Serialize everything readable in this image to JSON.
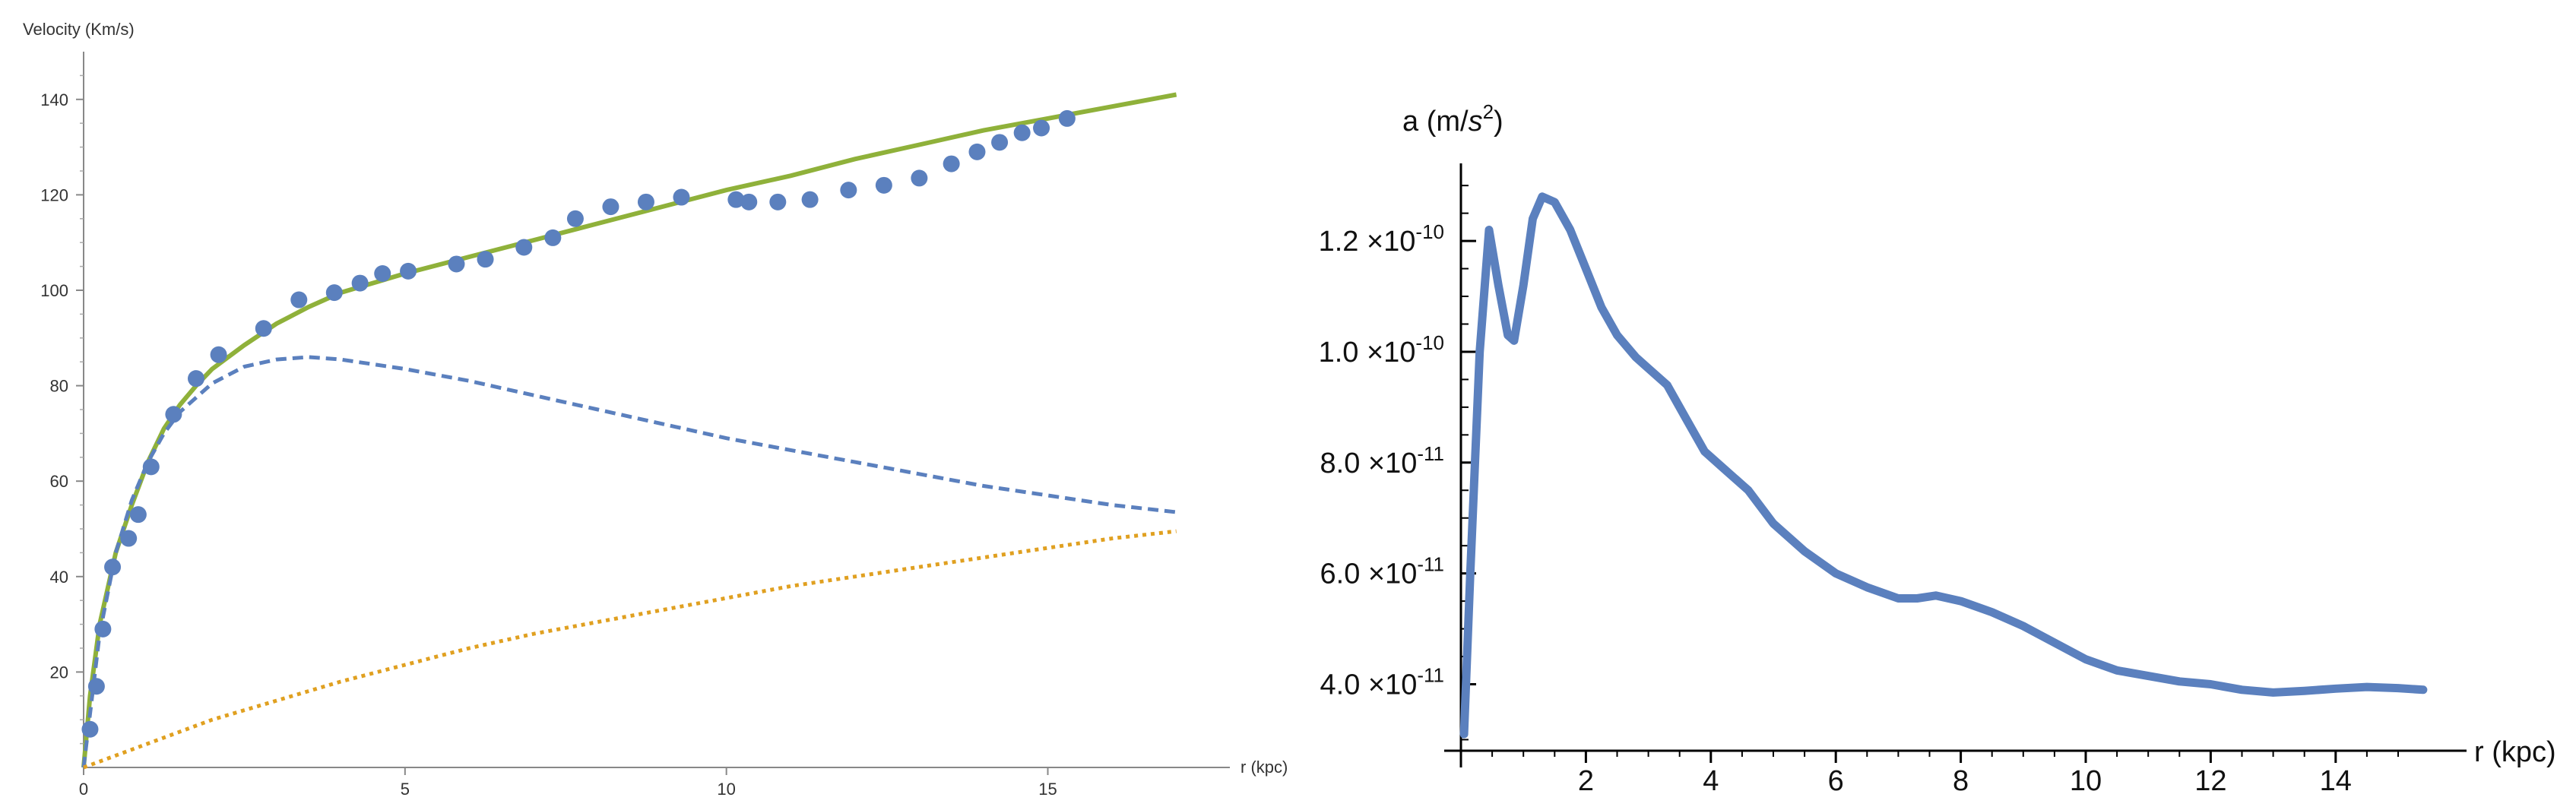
{
  "chart_data": [
    {
      "type": "scatter",
      "title": "",
      "xlabel": "r (kpc)",
      "ylabel": "Velocity (Km/s)",
      "xlim": [
        0,
        17.3
      ],
      "ylim": [
        0,
        150
      ],
      "x_ticks": [
        0,
        5,
        10,
        15
      ],
      "y_ticks": [
        20,
        40,
        60,
        80,
        100,
        120,
        140
      ],
      "grid": false,
      "legend": "none",
      "colors": {
        "points": "#5b80be",
        "total": "#8fb13a",
        "dashed": "#5b80be",
        "dotted": "#e0a020"
      },
      "series": [
        {
          "style": "points",
          "x": [
            0.1,
            0.2,
            0.3,
            0.45,
            0.7,
            0.85,
            1.05,
            1.4,
            1.75,
            2.1,
            2.8,
            3.35,
            3.9,
            4.3,
            4.65,
            5.05,
            5.8,
            6.25,
            6.85,
            7.3,
            7.65,
            8.2,
            8.75,
            9.3,
            10.15,
            10.35,
            10.8,
            11.3,
            11.9,
            12.45,
            13.0,
            13.5,
            13.9,
            14.25,
            14.6,
            14.9,
            15.3
          ],
          "y": [
            8,
            17,
            29,
            42,
            48,
            53,
            63,
            74,
            81.5,
            86.5,
            92,
            98,
            99.5,
            101.5,
            103.5,
            104,
            105.5,
            106.5,
            109,
            111,
            115,
            117.5,
            118.5,
            119.5,
            119,
            118.5,
            118.5,
            119,
            121,
            122,
            123.5,
            126.5,
            129,
            131,
            133,
            134,
            136
          ]
        },
        {
          "style": "solid",
          "x": [
            0,
            0.1,
            0.25,
            0.5,
            0.75,
            1.0,
            1.25,
            1.5,
            1.75,
            2.0,
            2.5,
            3.0,
            3.5,
            4.0,
            5.0,
            6.0,
            7.0,
            8.0,
            9.0,
            10.0,
            11.0,
            12.0,
            13.0,
            14.0,
            15.0,
            16.0,
            17.0
          ],
          "y": [
            0,
            15,
            30,
            45,
            55,
            64,
            71,
            76,
            80,
            83.5,
            88.5,
            93,
            96.5,
            99.5,
            103.5,
            107,
            110.5,
            114,
            117.5,
            121,
            124,
            127.5,
            130.5,
            133.5,
            136,
            138.5,
            141
          ]
        },
        {
          "style": "dashed",
          "x": [
            0,
            0.25,
            0.5,
            0.75,
            1.0,
            1.25,
            1.5,
            2.0,
            2.5,
            3.0,
            3.5,
            4.0,
            5.0,
            6.0,
            7.0,
            8.0,
            9.0,
            10.0,
            11.0,
            12.0,
            13.0,
            14.0,
            15.0,
            16.0,
            17.0
          ],
          "y": [
            0,
            28,
            45,
            56,
            64,
            70,
            74.5,
            80.5,
            84,
            85.5,
            86,
            85.5,
            83.5,
            81,
            78,
            75,
            72,
            69,
            66.5,
            64,
            61.5,
            59,
            57,
            55,
            53.5
          ]
        },
        {
          "style": "dotted",
          "x": [
            0,
            0.5,
            1,
            2,
            3,
            4,
            5,
            6,
            7,
            8,
            9,
            10,
            11,
            12,
            13,
            14,
            15,
            16,
            17
          ],
          "y": [
            0,
            2.5,
            5,
            10,
            14,
            18,
            21.5,
            25,
            28,
            30.5,
            33,
            35.5,
            38,
            40,
            42,
            44,
            46,
            48,
            49.5
          ]
        }
      ]
    },
    {
      "type": "line",
      "title": "",
      "xlabel": "r (kpc)",
      "ylabel_base": "a (m/",
      "ylabel_unit": "s",
      "ylabel_exp": "2",
      "ylabel_tail": ")",
      "xlim": [
        -0.15,
        15.6
      ],
      "ylim": [
        2.8e-11,
        1.34e-10
      ],
      "x_ticks": [
        2,
        4,
        6,
        8,
        10,
        12,
        14
      ],
      "y_ticks": [
        {
          "value": 4e-11,
          "mantissa": "4.0",
          "exponent": "-11"
        },
        {
          "value": 6e-11,
          "mantissa": "6.0",
          "exponent": "-11"
        },
        {
          "value": 8e-11,
          "mantissa": "8.0",
          "exponent": "-11"
        },
        {
          "value": 1e-10,
          "mantissa": "1.0",
          "exponent": "-10"
        },
        {
          "value": 1.2e-10,
          "mantissa": "1.2",
          "exponent": "-10"
        }
      ],
      "times_base": "×10",
      "grid": false,
      "legend": "none",
      "colors": {
        "line": "#5b80be"
      },
      "series": [
        {
          "x": [
            0.05,
            0.15,
            0.3,
            0.45,
            0.6,
            0.75,
            0.85,
            1.0,
            1.15,
            1.3,
            1.5,
            1.75,
            2.0,
            2.25,
            2.5,
            2.8,
            3.0,
            3.3,
            3.6,
            3.9,
            4.2,
            4.6,
            5.0,
            5.5,
            6.0,
            6.5,
            7.0,
            7.3,
            7.6,
            8.0,
            8.5,
            9.0,
            9.5,
            10.0,
            10.5,
            11.0,
            11.5,
            12.0,
            12.5,
            13.0,
            13.5,
            14.0,
            14.5,
            15.0,
            15.4
          ],
          "y": [
            3.1e-11,
            6e-11,
            1e-10,
            1.22e-10,
            1.12e-10,
            1.03e-10,
            1.02e-10,
            1.12e-10,
            1.24e-10,
            1.28e-10,
            1.27e-10,
            1.22e-10,
            1.15e-10,
            1.08e-10,
            1.03e-10,
            9.9e-11,
            9.7e-11,
            9.4e-11,
            8.8e-11,
            8.2e-11,
            7.9e-11,
            7.5e-11,
            6.9e-11,
            6.4e-11,
            6e-11,
            5.75e-11,
            5.55e-11,
            5.55e-11,
            5.6e-11,
            5.5e-11,
            5.3e-11,
            5.05e-11,
            4.75e-11,
            4.45e-11,
            4.25e-11,
            4.15e-11,
            4.05e-11,
            4e-11,
            3.9e-11,
            3.85e-11,
            3.88e-11,
            3.92e-11,
            3.95e-11,
            3.93e-11,
            3.9e-11
          ]
        }
      ]
    }
  ]
}
